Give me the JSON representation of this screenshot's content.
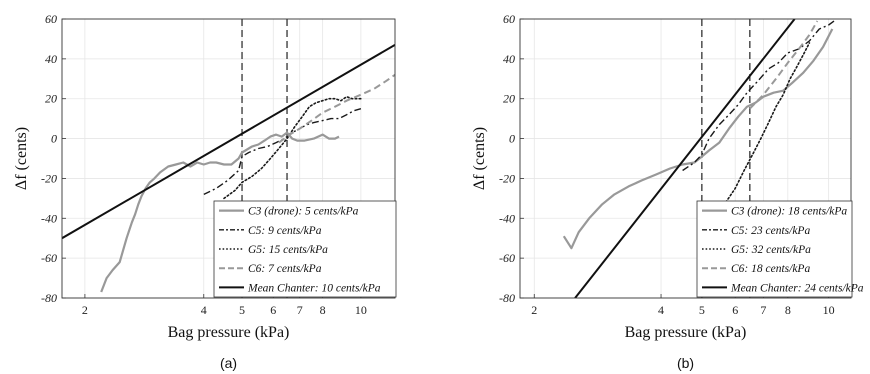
{
  "chart_data": [
    {
      "type": "line",
      "panel_label": "(a)",
      "xlabel": "Bag pressure (kPa)",
      "ylabel": "Δf (cents)",
      "x_scale": "log",
      "xlim": [
        1.75,
        12.2
      ],
      "ylim": [
        -80,
        60
      ],
      "x_tick_values": [
        2,
        4,
        5,
        6,
        7,
        8,
        10
      ],
      "x_tick_labels": [
        "2",
        "4",
        "5",
        "6",
        "7",
        "8",
        "10"
      ],
      "y_ticks": [
        -80,
        -60,
        -40,
        -20,
        0,
        20,
        40,
        60
      ],
      "grid": true,
      "vlines": [
        5,
        6.5
      ],
      "legend_placement": "bottom-right",
      "series": [
        {
          "name": "C3 (drone): 5 cents/kPa",
          "style": "solid",
          "color": "#999999",
          "width": 2.2,
          "x": [
            2.2,
            2.27,
            2.35,
            2.45,
            2.55,
            2.63,
            2.68,
            2.73,
            2.78,
            2.85,
            2.92,
            3.0,
            3.1,
            3.25,
            3.4,
            3.55,
            3.7,
            3.85,
            4.0,
            4.15,
            4.3,
            4.5,
            4.7,
            4.9,
            5.0,
            5.1,
            5.3,
            5.5,
            5.7,
            5.9,
            6.1,
            6.3,
            6.5,
            6.7,
            6.9,
            7.2,
            7.6,
            8.0,
            8.3,
            8.6,
            8.8
          ],
          "y": [
            -77,
            -70,
            -66,
            -62,
            -50,
            -42,
            -38,
            -33,
            -29,
            -25,
            -22,
            -20,
            -17,
            -14,
            -13,
            -12,
            -14,
            -12,
            -13,
            -12,
            -12,
            -13,
            -13,
            -10,
            -7,
            -6,
            -4,
            -3,
            -1,
            1,
            2,
            1,
            3,
            0,
            -1,
            -1,
            0,
            2,
            0,
            0,
            1
          ]
        },
        {
          "name": "C5: 9 cents/kPa",
          "style": "dashdot",
          "color": "#1a1a1a",
          "width": 1.4,
          "x": [
            4.0,
            4.3,
            4.6,
            4.9,
            5.0,
            5.2,
            5.5,
            5.8,
            6.1,
            6.4,
            6.7,
            7.0,
            7.3,
            7.6,
            8.0,
            8.4,
            8.8,
            9.2,
            9.6,
            10.0
          ],
          "y": [
            -28,
            -25,
            -21,
            -16,
            -9,
            -7,
            -5,
            -4,
            -2,
            0,
            3,
            5,
            7,
            8,
            9,
            10,
            10,
            12,
            14,
            15
          ]
        },
        {
          "name": "G5: 15 cents/kPa",
          "style": "dotted",
          "color": "#1a1a1a",
          "width": 1.6,
          "x": [
            4.5,
            4.8,
            5.0,
            5.3,
            5.6,
            5.9,
            6.2,
            6.5,
            6.8,
            7.1,
            7.4,
            7.7,
            8.0,
            8.3,
            8.6,
            8.9,
            9.2,
            9.5,
            9.8,
            10.0
          ],
          "y": [
            -30,
            -26,
            -22,
            -19,
            -15,
            -10,
            -5,
            0,
            6,
            11,
            16,
            18,
            19,
            20,
            20,
            19,
            21,
            20,
            20,
            20
          ]
        },
        {
          "name": "C6: 7 cents/kPa",
          "style": "dashed",
          "color": "#999999",
          "width": 2.0,
          "x": [
            6.2,
            6.6,
            7.0,
            7.5,
            8.0,
            8.6,
            9.2,
            10.0,
            10.8,
            11.6,
            12.2
          ],
          "y": [
            -2,
            2,
            5,
            9,
            13,
            16,
            19,
            22,
            25,
            29,
            32
          ]
        },
        {
          "name": "Mean Chanter: 10 cents/kPa",
          "style": "solid",
          "color": "#111111",
          "width": 2.0,
          "x": [
            1.75,
            12.2
          ],
          "y": [
            -50,
            47
          ]
        }
      ]
    },
    {
      "type": "line",
      "panel_label": "(b)",
      "xlabel": "Bag pressure (kPa)",
      "ylabel": "Δf (cents)",
      "x_scale": "log",
      "xlim": [
        1.85,
        11.3
      ],
      "ylim": [
        -80,
        60
      ],
      "x_tick_values": [
        2,
        4,
        5,
        6,
        7,
        8,
        10
      ],
      "x_tick_labels": [
        "2",
        "4",
        "5",
        "6",
        "7",
        "8",
        "10"
      ],
      "y_ticks": [
        -80,
        -60,
        -40,
        -20,
        0,
        20,
        40,
        60
      ],
      "grid": true,
      "vlines": [
        5,
        6.5
      ],
      "legend_placement": "bottom-right",
      "series": [
        {
          "name": "C3 (drone): 18 cents/kPa",
          "style": "solid",
          "color": "#999999",
          "width": 2.2,
          "x": [
            2.35,
            2.45,
            2.55,
            2.7,
            2.9,
            3.1,
            3.35,
            3.6,
            3.9,
            4.2,
            4.5,
            4.8,
            5.0,
            5.2,
            5.5,
            5.8,
            6.1,
            6.4,
            6.7,
            7.0,
            7.4,
            7.8,
            8.2,
            8.7,
            9.2,
            9.7,
            10.2
          ],
          "y": [
            -49,
            -55,
            -47,
            -40,
            -33,
            -28,
            -24,
            -21,
            -18,
            -15,
            -13,
            -12,
            -9,
            -6,
            -2,
            5,
            11,
            16,
            18,
            21,
            23,
            24,
            28,
            33,
            39,
            46,
            55
          ]
        },
        {
          "name": "C5: 23 cents/kPa",
          "style": "dashdot",
          "color": "#1a1a1a",
          "width": 1.4,
          "x": [
            4.5,
            4.8,
            5.0,
            5.2,
            5.5,
            5.8,
            6.1,
            6.4,
            6.8,
            7.2,
            7.6,
            8.0,
            8.5,
            9.0,
            9.5,
            10.0,
            10.3
          ],
          "y": [
            -16,
            -12,
            -8,
            0,
            7,
            12,
            17,
            23,
            29,
            35,
            38,
            43,
            45,
            49,
            55,
            57,
            59
          ]
        },
        {
          "name": "G5: 32 cents/kPa",
          "style": "dotted",
          "color": "#1a1a1a",
          "width": 1.6,
          "x": [
            5.7,
            6.0,
            6.3,
            6.6,
            6.9,
            7.2,
            7.5,
            7.8,
            8.1,
            8.4,
            8.7,
            9.0
          ],
          "y": [
            -32,
            -25,
            -16,
            -8,
            0,
            8,
            16,
            22,
            30,
            36,
            42,
            48
          ]
        },
        {
          "name": "C6: 18 cents/kPa",
          "style": "dashed",
          "color": "#999999",
          "width": 2.0,
          "x": [
            6.5,
            7.0,
            7.5,
            8.0,
            8.5,
            9.0,
            9.4
          ],
          "y": [
            15,
            22,
            30,
            38,
            45,
            52,
            59
          ]
        },
        {
          "name": "Mean Chanter: 24 cents/kPa",
          "style": "solid",
          "color": "#111111",
          "width": 2.0,
          "x": [
            2.5,
            8.3
          ],
          "y": [
            -80,
            60
          ]
        }
      ]
    }
  ]
}
